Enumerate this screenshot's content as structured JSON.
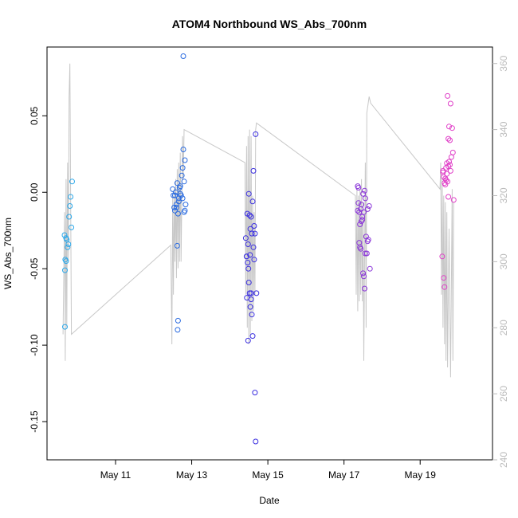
{
  "chart_data": {
    "type": "scatter",
    "title": "ATOM4 Northbound WS_Abs_700nm",
    "xlabel": "Date",
    "ylabel": "WS_Abs_700nm",
    "xlim": [
      9.2,
      20.9
    ],
    "ylim": [
      -0.175,
      0.095
    ],
    "y2lim": [
      240,
      365
    ],
    "x_ticks": [
      11,
      13,
      15,
      17,
      19
    ],
    "x_tick_labels": [
      "May 11",
      "May 13",
      "May 15",
      "May 17",
      "May 19"
    ],
    "y_ticks": [
      -0.15,
      -0.1,
      -0.05,
      0.0,
      0.05
    ],
    "y_tick_labels": [
      "-0.15",
      "-0.10",
      "-0.05",
      "0.00",
      "0.05"
    ],
    "y2_ticks": [
      240,
      260,
      280,
      300,
      320,
      340,
      360
    ],
    "y2_tick_labels": [
      "240",
      "260",
      "280",
      "300",
      "320",
      "340",
      "360"
    ],
    "grid": false,
    "colors": {
      "altitude_line": "#c8c8c8",
      "axis_right": "#bbbbbb",
      "cluster1": "#2ba8ea",
      "cluster2": "#2a6be0",
      "cluster3": "#3a2ee0",
      "cluster4": "#8a35d8",
      "cluster5": "#e040c8"
    },
    "series": [
      {
        "color": "#2ba8ea",
        "points": [
          [
            9.66,
            -0.028
          ],
          [
            9.68,
            -0.044
          ],
          [
            9.7,
            -0.045
          ],
          [
            9.67,
            -0.051
          ],
          [
            9.72,
            -0.031
          ],
          [
            9.74,
            -0.036
          ],
          [
            9.76,
            -0.034
          ],
          [
            9.78,
            -0.016
          ],
          [
            9.8,
            -0.009
          ],
          [
            9.82,
            -0.003
          ],
          [
            9.84,
            -0.023
          ],
          [
            9.86,
            0.007
          ],
          [
            9.67,
            -0.088
          ],
          [
            9.7,
            -0.03
          ]
        ]
      },
      {
        "color": "#2a6be0",
        "points": [
          [
            12.5,
            0.002
          ],
          [
            12.52,
            -0.002
          ],
          [
            12.54,
            -0.01
          ],
          [
            12.56,
            -0.012
          ],
          [
            12.58,
            0.0
          ],
          [
            12.6,
            -0.008
          ],
          [
            12.62,
            0.006
          ],
          [
            12.64,
            -0.014
          ],
          [
            12.66,
            -0.004
          ],
          [
            12.68,
            0.003
          ],
          [
            12.7,
            0.004
          ],
          [
            12.72,
            -0.002
          ],
          [
            12.74,
            0.011
          ],
          [
            12.76,
            -0.004
          ],
          [
            12.78,
            0.028
          ],
          [
            12.8,
            -0.013
          ],
          [
            12.82,
            0.021
          ],
          [
            12.84,
            -0.008
          ],
          [
            12.62,
            -0.035
          ],
          [
            12.64,
            -0.084
          ],
          [
            12.63,
            -0.09
          ],
          [
            12.76,
            0.016
          ],
          [
            12.8,
            0.007
          ],
          [
            12.82,
            -0.012
          ],
          [
            12.56,
            -0.002
          ],
          [
            12.6,
            -0.01
          ],
          [
            12.66,
            -0.006
          ],
          [
            12.7,
            -0.001
          ],
          [
            12.78,
            0.089
          ]
        ]
      },
      {
        "color": "#3a2ee0",
        "points": [
          [
            14.42,
            -0.03
          ],
          [
            14.44,
            -0.042
          ],
          [
            14.46,
            -0.014
          ],
          [
            14.48,
            -0.034
          ],
          [
            14.5,
            -0.001
          ],
          [
            14.52,
            -0.015
          ],
          [
            14.54,
            -0.024
          ],
          [
            14.56,
            -0.016
          ],
          [
            14.58,
            -0.027
          ],
          [
            14.6,
            -0.006
          ],
          [
            14.62,
            0.014
          ],
          [
            14.64,
            -0.022
          ],
          [
            14.66,
            -0.027
          ],
          [
            14.68,
            0.038
          ],
          [
            14.5,
            -0.059
          ],
          [
            14.52,
            -0.066
          ],
          [
            14.54,
            -0.075
          ],
          [
            14.56,
            -0.07
          ],
          [
            14.58,
            -0.08
          ],
          [
            14.6,
            -0.094
          ],
          [
            14.48,
            -0.097
          ],
          [
            14.62,
            -0.036
          ],
          [
            14.64,
            -0.044
          ],
          [
            14.7,
            -0.066
          ],
          [
            14.45,
            -0.069
          ],
          [
            14.47,
            -0.046
          ],
          [
            14.49,
            -0.05
          ],
          [
            14.53,
            -0.041
          ],
          [
            14.66,
            -0.131
          ],
          [
            14.68,
            -0.163
          ],
          [
            14.44,
            -0.042
          ],
          [
            14.56,
            -0.066
          ]
        ]
      },
      {
        "color": "#8a35d8",
        "points": [
          [
            17.36,
            0.004
          ],
          [
            17.38,
            -0.007
          ],
          [
            17.4,
            -0.013
          ],
          [
            17.42,
            -0.021
          ],
          [
            17.44,
            -0.011
          ],
          [
            17.46,
            -0.008
          ],
          [
            17.48,
            -0.016
          ],
          [
            17.5,
            -0.001
          ],
          [
            17.52,
            -0.013
          ],
          [
            17.54,
            0.001
          ],
          [
            17.56,
            -0.004
          ],
          [
            17.58,
            -0.029
          ],
          [
            17.6,
            -0.04
          ],
          [
            17.62,
            -0.011
          ],
          [
            17.64,
            -0.031
          ],
          [
            17.66,
            -0.009
          ],
          [
            17.68,
            -0.05
          ],
          [
            17.4,
            -0.033
          ],
          [
            17.42,
            -0.036
          ],
          [
            17.44,
            -0.037
          ],
          [
            17.5,
            -0.053
          ],
          [
            17.52,
            -0.055
          ],
          [
            17.54,
            -0.063
          ],
          [
            17.62,
            -0.032
          ],
          [
            17.48,
            -0.018
          ],
          [
            17.38,
            0.003
          ],
          [
            17.46,
            -0.019
          ],
          [
            17.56,
            -0.04
          ],
          [
            17.36,
            -0.012
          ]
        ]
      },
      {
        "color": "#e040c8",
        "points": [
          [
            19.6,
            0.013
          ],
          [
            19.62,
            0.01
          ],
          [
            19.64,
            0.006
          ],
          [
            19.66,
            0.009
          ],
          [
            19.68,
            0.016
          ],
          [
            19.7,
            0.019
          ],
          [
            19.72,
            0.063
          ],
          [
            19.74,
            0.035
          ],
          [
            19.76,
            0.043
          ],
          [
            19.78,
            0.034
          ],
          [
            19.8,
            0.058
          ],
          [
            19.82,
            0.023
          ],
          [
            19.84,
            0.042
          ],
          [
            19.86,
            0.026
          ],
          [
            19.88,
            -0.005
          ],
          [
            19.62,
            -0.056
          ],
          [
            19.64,
            -0.062
          ],
          [
            19.58,
            -0.042
          ],
          [
            19.66,
            0.005
          ],
          [
            19.7,
            0.012
          ],
          [
            19.72,
            0.007
          ],
          [
            19.74,
            0.017
          ],
          [
            19.76,
            0.02
          ],
          [
            19.78,
            0.018
          ],
          [
            19.8,
            0.014
          ],
          [
            19.68,
            0.008
          ],
          [
            19.6,
            0.014
          ],
          [
            19.74,
            -0.003
          ]
        ]
      }
    ],
    "altitude_line": [
      [
        9.62,
        278
      ],
      [
        9.66,
        315
      ],
      [
        9.68,
        270
      ],
      [
        9.7,
        325
      ],
      [
        9.72,
        280
      ],
      [
        9.74,
        330
      ],
      [
        9.76,
        300
      ],
      [
        9.78,
        350
      ],
      [
        9.8,
        360
      ],
      [
        9.84,
        278
      ],
      [
        12.45,
        305
      ],
      [
        12.46,
        295
      ],
      [
        12.48,
        275
      ],
      [
        12.5,
        320
      ],
      [
        12.52,
        290
      ],
      [
        12.54,
        322
      ],
      [
        12.56,
        300
      ],
      [
        12.58,
        325
      ],
      [
        12.6,
        295
      ],
      [
        12.62,
        328
      ],
      [
        12.64,
        298
      ],
      [
        12.66,
        330
      ],
      [
        12.68,
        300
      ],
      [
        12.7,
        333
      ],
      [
        12.72,
        300
      ],
      [
        12.76,
        338
      ],
      [
        12.78,
        325
      ],
      [
        12.8,
        340
      ],
      [
        14.4,
        330
      ],
      [
        14.42,
        290
      ],
      [
        14.44,
        335
      ],
      [
        14.46,
        280
      ],
      [
        14.48,
        338
      ],
      [
        14.5,
        275
      ],
      [
        14.52,
        340
      ],
      [
        14.54,
        278
      ],
      [
        14.56,
        338
      ],
      [
        14.58,
        282
      ],
      [
        14.6,
        320
      ],
      [
        14.62,
        285
      ],
      [
        14.64,
        315
      ],
      [
        14.66,
        290
      ],
      [
        14.68,
        340
      ],
      [
        14.7,
        342
      ],
      [
        17.3,
        320
      ],
      [
        17.32,
        290
      ],
      [
        17.34,
        322
      ],
      [
        17.36,
        285
      ],
      [
        17.38,
        320
      ],
      [
        17.4,
        288
      ],
      [
        17.42,
        322
      ],
      [
        17.44,
        290
      ],
      [
        17.46,
        325
      ],
      [
        17.48,
        288
      ],
      [
        17.5,
        318
      ],
      [
        17.52,
        270
      ],
      [
        17.56,
        330
      ],
      [
        17.58,
        280
      ],
      [
        17.6,
        345
      ],
      [
        17.66,
        350
      ],
      [
        17.7,
        348
      ],
      [
        19.52,
        322
      ],
      [
        19.54,
        330
      ],
      [
        19.56,
        290
      ],
      [
        19.58,
        325
      ],
      [
        19.6,
        280
      ],
      [
        19.62,
        320
      ],
      [
        19.64,
        275
      ],
      [
        19.66,
        318
      ],
      [
        19.68,
        270
      ],
      [
        19.7,
        315
      ],
      [
        19.72,
        268
      ],
      [
        19.76,
        310
      ],
      [
        19.8,
        265
      ],
      [
        19.84,
        322
      ],
      [
        19.86,
        270
      ],
      [
        19.88,
        318
      ]
    ]
  }
}
